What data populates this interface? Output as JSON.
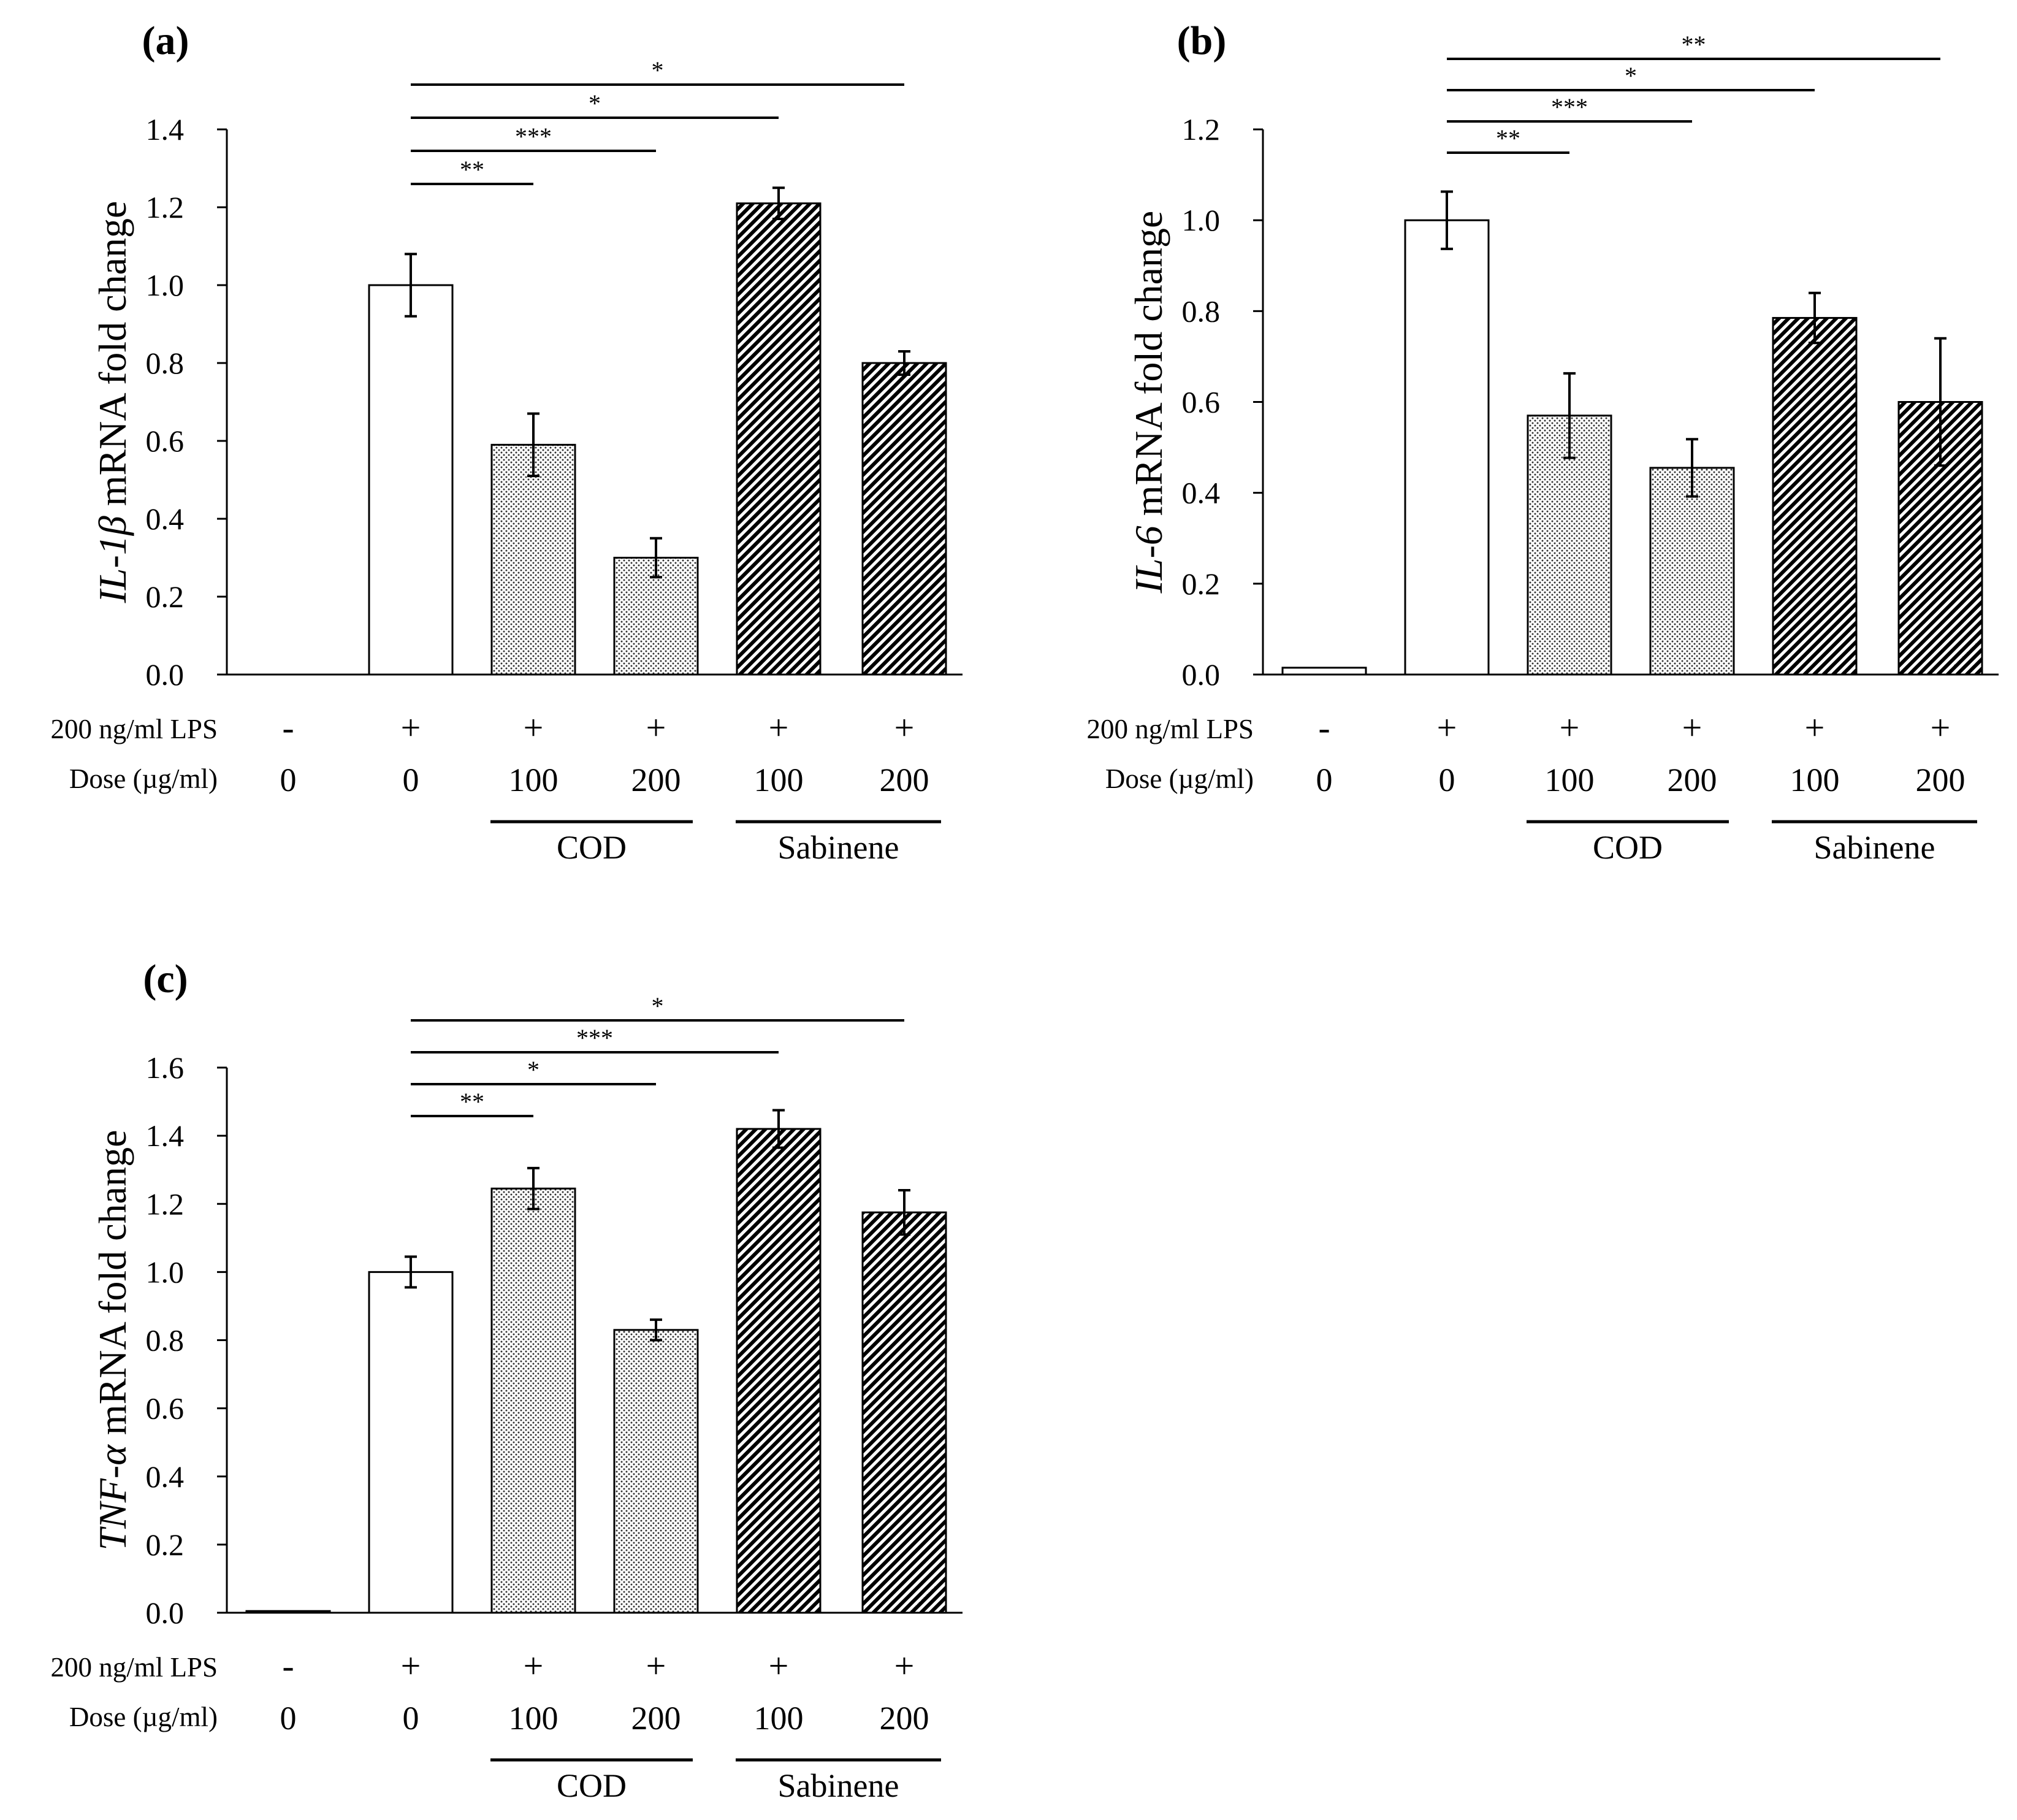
{
  "figure": {
    "row_labels": {
      "lps": "200 ng/ml LPS",
      "dose": "Dose (µg/ml)"
    },
    "lps_signs": [
      "-",
      "+",
      "+",
      "+",
      "+",
      "+"
    ],
    "doses": [
      "0",
      "0",
      "100",
      "200",
      "100",
      "200"
    ],
    "groups": [
      "COD",
      "Sabinene"
    ],
    "colors": {
      "bar_outline": "#000000",
      "control_fill": "#ffffff",
      "pattern_ink": "#000000"
    },
    "patterns": [
      "none",
      "none",
      "dots",
      "dots",
      "hatch",
      "hatch"
    ]
  },
  "chart_data": [
    {
      "type": "bar",
      "panel": "(a)",
      "ylabel_italic": "IL-1β",
      "ylabel_rest": " mRNA fold change",
      "ylim": [
        0,
        1.4
      ],
      "yticks": [
        "0.0",
        "0.2",
        "0.4",
        "0.6",
        "0.8",
        "1.0",
        "1.2",
        "1.4"
      ],
      "values": [
        0.0,
        1.0,
        0.59,
        0.3,
        1.21,
        0.8
      ],
      "errors": [
        0.0,
        0.08,
        0.08,
        0.05,
        0.04,
        0.03
      ],
      "significance": [
        {
          "from": 1,
          "to": 2,
          "label": "**"
        },
        {
          "from": 1,
          "to": 3,
          "label": "***"
        },
        {
          "from": 1,
          "to": 4,
          "label": "*"
        },
        {
          "from": 1,
          "to": 5,
          "label": "*"
        }
      ]
    },
    {
      "type": "bar",
      "panel": "(b)",
      "ylabel_italic": "IL-6",
      "ylabel_rest": " mRNA fold change",
      "ylim": [
        0,
        1.2
      ],
      "yticks": [
        "0.0",
        "0.2",
        "0.4",
        "0.6",
        "0.8",
        "1.0",
        "1.2"
      ],
      "values": [
        0.015,
        1.0,
        0.57,
        0.455,
        0.785,
        0.6
      ],
      "errors": [
        0.0,
        0.063,
        0.093,
        0.063,
        0.055,
        0.14
      ],
      "significance": [
        {
          "from": 1,
          "to": 2,
          "label": "**"
        },
        {
          "from": 1,
          "to": 3,
          "label": "***"
        },
        {
          "from": 1,
          "to": 4,
          "label": "*"
        },
        {
          "from": 1,
          "to": 5,
          "label": "**"
        }
      ]
    },
    {
      "type": "bar",
      "panel": "(c)",
      "ylabel_italic": "TNF-α",
      "ylabel_rest": " mRNA fold change",
      "ylim": [
        0,
        1.6
      ],
      "yticks": [
        "0.0",
        "0.2",
        "0.4",
        "0.6",
        "0.8",
        "1.0",
        "1.2",
        "1.4",
        "1.6"
      ],
      "values": [
        0.005,
        1.0,
        1.245,
        0.83,
        1.42,
        1.175
      ],
      "errors": [
        0.0,
        0.045,
        0.06,
        0.03,
        0.055,
        0.065
      ],
      "significance": [
        {
          "from": 1,
          "to": 2,
          "label": "**"
        },
        {
          "from": 1,
          "to": 3,
          "label": "*"
        },
        {
          "from": 1,
          "to": 4,
          "label": "***"
        },
        {
          "from": 1,
          "to": 5,
          "label": "*"
        }
      ]
    }
  ]
}
